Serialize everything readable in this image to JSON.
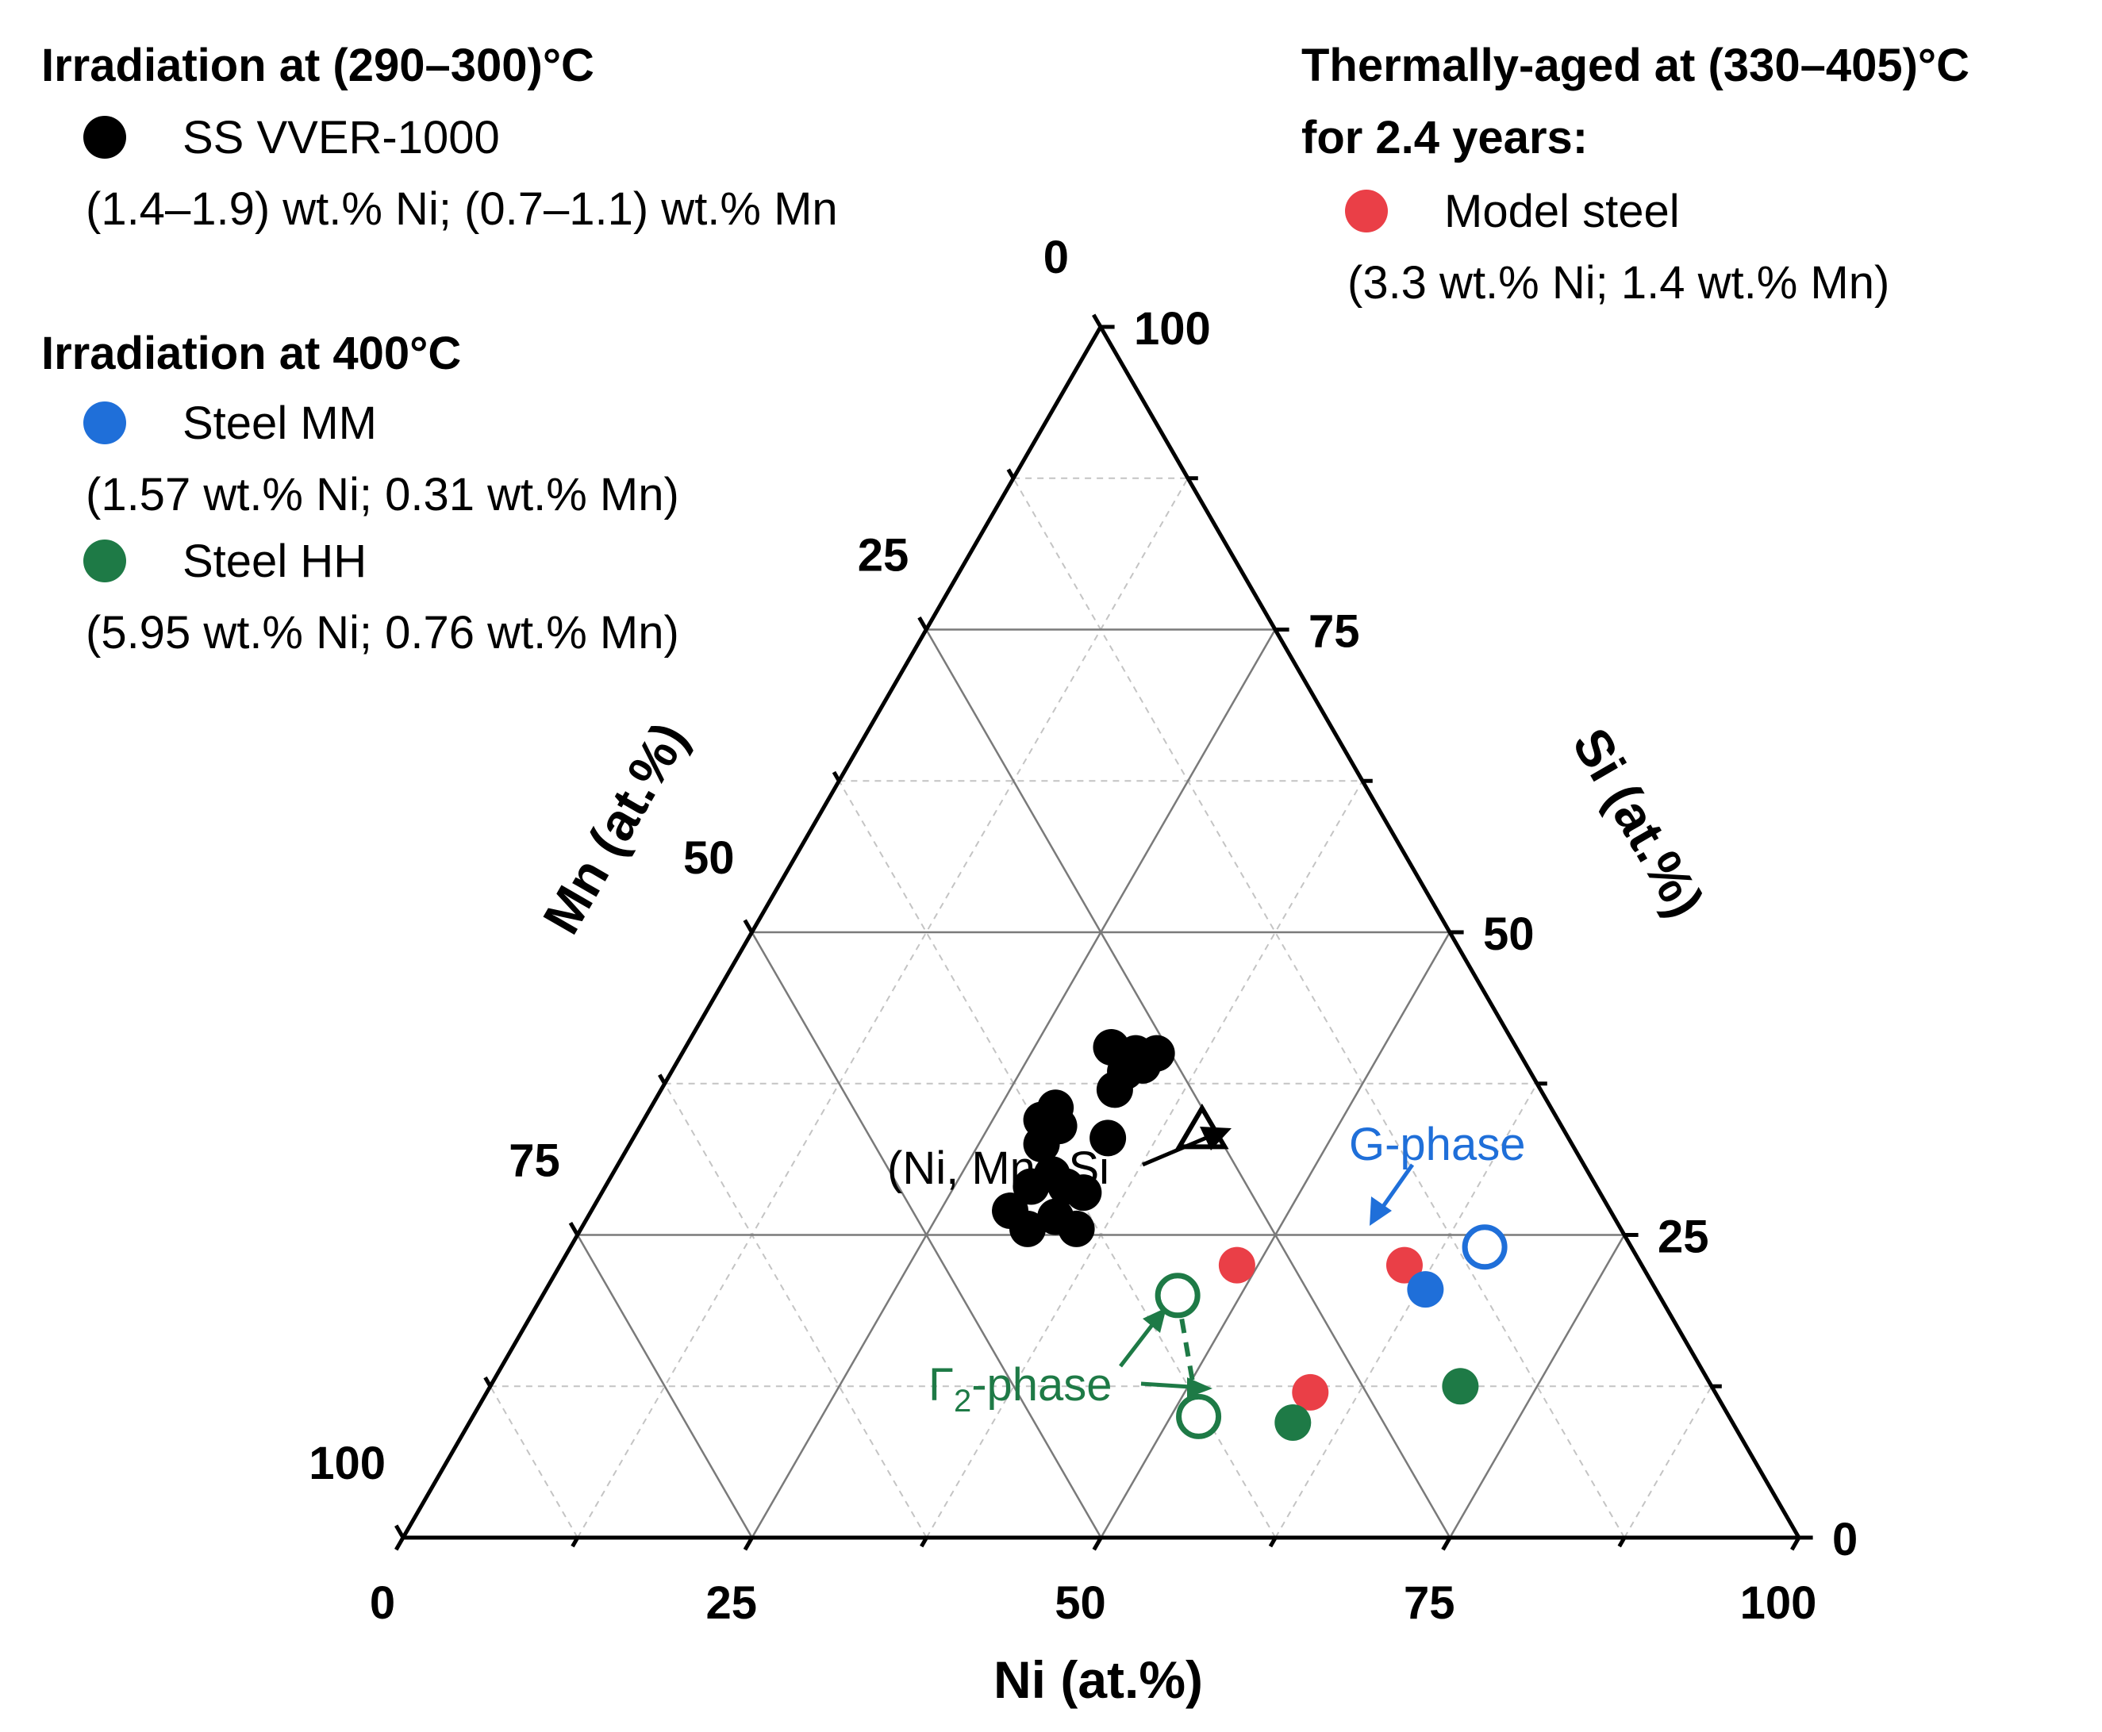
{
  "chart_data": {
    "type": "ternary-scatter",
    "axes": {
      "bottom": {
        "label": "Ni (at.%)",
        "ticks": [
          "0",
          "25",
          "50",
          "75",
          "100"
        ]
      },
      "right": {
        "label": "Si (at.%)",
        "ticks": [
          "0",
          "25",
          "50",
          "75",
          "100"
        ]
      },
      "left": {
        "label": "Mn (at.%)",
        "ticks": [
          "0",
          "25",
          "50",
          "75",
          "100"
        ]
      },
      "range": [
        0,
        100
      ],
      "minor_step": 12.5,
      "major_step": 25
    },
    "legend": {
      "group1": {
        "title": "Irradiation at (290–300)°C",
        "entries": [
          {
            "name": "SS VVER-1000",
            "color": "#000000",
            "note": "(1.4–1.9) wt.% Ni; (0.7–1.1) wt.% Mn"
          }
        ]
      },
      "group2": {
        "title": "Irradiation at 400°C",
        "entries": [
          {
            "name": "Steel MM",
            "color": "#1f6fd9",
            "note": "(1.57 wt.% Ni; 0.31 wt.% Mn)"
          },
          {
            "name": "Steel HH",
            "color": "#1e7a46",
            "note": "(5.95 wt.% Ni; 0.76 wt.% Mn)"
          }
        ]
      },
      "group3": {
        "title_line1": "Thermally-aged at (330–405)°C",
        "title_line2": "for 2.4 years:",
        "entries": [
          {
            "name": "Model steel",
            "color": "#ea3f47",
            "note": "(3.3 wt.% Ni; 1.4 wt.% Mn)"
          }
        ]
      }
    },
    "series": [
      {
        "name": "SS VVER-1000",
        "color": "#000000",
        "marker": "filled-circle",
        "points": [
          {
            "ni": 30.5,
            "si": 40.5,
            "mn": 29.0
          },
          {
            "ni": 32.5,
            "si": 40.0,
            "mn": 27.5
          },
          {
            "ni": 34.0,
            "si": 40.0,
            "mn": 26.0
          },
          {
            "ni": 33.5,
            "si": 39.0,
            "mn": 27.5
          },
          {
            "ni": 32.5,
            "si": 38.5,
            "mn": 29.0
          },
          {
            "ni": 32.5,
            "si": 37.0,
            "mn": 30.5
          },
          {
            "ni": 29.0,
            "si": 35.5,
            "mn": 35.5
          },
          {
            "ni": 28.5,
            "si": 34.5,
            "mn": 37.0
          },
          {
            "ni": 30.0,
            "si": 34.0,
            "mn": 36.0
          },
          {
            "ni": 34.0,
            "si": 33.0,
            "mn": 33.0
          },
          {
            "ni": 29.5,
            "si": 32.5,
            "mn": 38.0
          },
          {
            "ni": 31.5,
            "si": 30.0,
            "mn": 38.5
          },
          {
            "ni": 30.5,
            "si": 29.0,
            "mn": 40.5
          },
          {
            "ni": 33.0,
            "si": 29.0,
            "mn": 38.0
          },
          {
            "ni": 30.0,
            "si": 27.0,
            "mn": 43.0
          },
          {
            "ni": 34.5,
            "si": 28.5,
            "mn": 37.0
          },
          {
            "ni": 33.5,
            "si": 26.5,
            "mn": 40.0
          },
          {
            "ni": 32.0,
            "si": 25.5,
            "mn": 42.5
          },
          {
            "ni": 35.5,
            "si": 25.5,
            "mn": 39.0
          }
        ]
      },
      {
        "name": "Model steel",
        "color": "#ea3f47",
        "marker": "filled-circle",
        "points": [
          {
            "ni": 48.5,
            "si": 22.5,
            "mn": 29.0
          },
          {
            "ni": 60.5,
            "si": 22.5,
            "mn": 17.0
          },
          {
            "ni": 59.0,
            "si": 12.0,
            "mn": 29.0
          }
        ]
      },
      {
        "name": "Steel MM",
        "color": "#1f6fd9",
        "marker": "filled-circle",
        "points": [
          {
            "ni": 63.0,
            "si": 20.5,
            "mn": 16.5
          }
        ]
      },
      {
        "name": "Steel HH",
        "color": "#1e7a46",
        "marker": "filled-circle",
        "points": [
          {
            "ni": 69.5,
            "si": 12.5,
            "mn": 18.0
          },
          {
            "ni": 59.0,
            "si": 9.5,
            "mn": 31.5
          }
        ]
      }
    ],
    "references": [
      {
        "label_main": "(Ni, Mn)",
        "label_sub": "2",
        "label_tail": "Si",
        "marker": "open-triangle",
        "color": "#000000",
        "ni": 40.5,
        "si": 33.5,
        "mn": 26.0
      },
      {
        "label": "G-phase",
        "marker": "open-circle",
        "color": "#1f6fd9",
        "ni": 65.5,
        "si": 24.0,
        "mn": 10.5
      },
      {
        "label_main": "Γ",
        "label_sub": "2",
        "label_tail": "-phase",
        "marker": "open-circle",
        "color": "#1e7a46",
        "points": [
          {
            "ni": 45.5,
            "si": 20.0,
            "mn": 34.5
          },
          {
            "ni": 52.0,
            "si": 10.0,
            "mn": 38.0
          }
        ]
      }
    ]
  }
}
